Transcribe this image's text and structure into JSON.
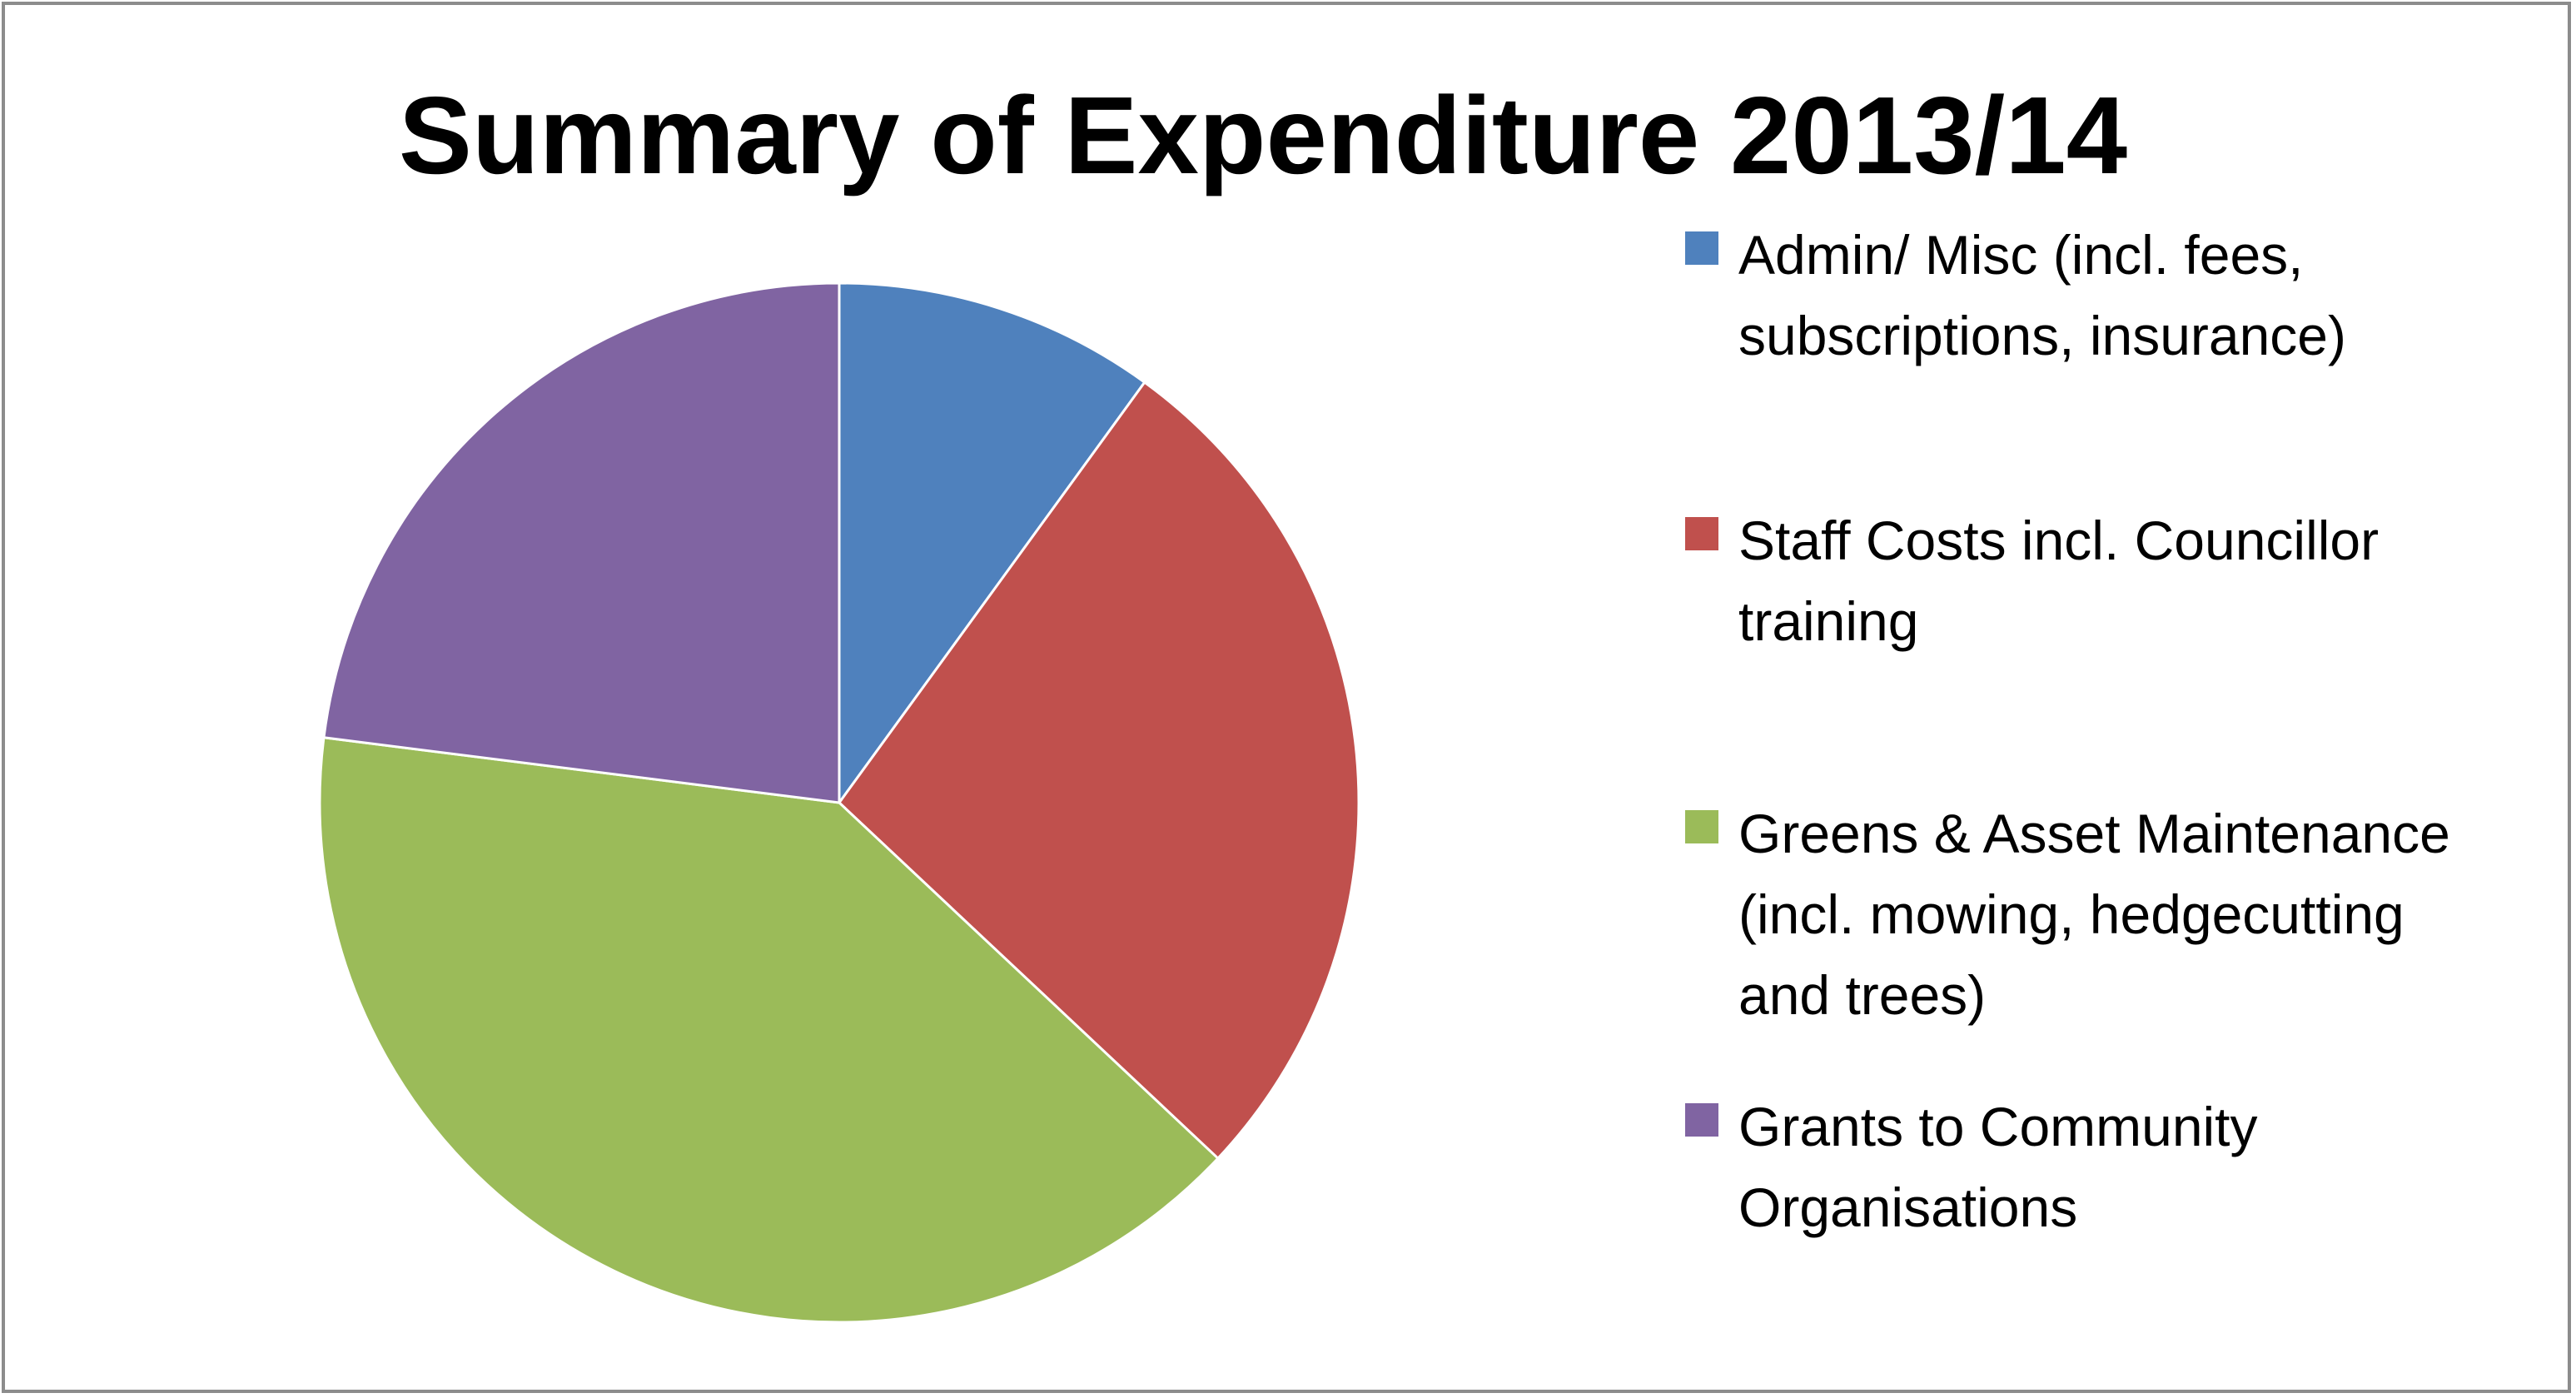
{
  "chart_data": {
    "type": "pie",
    "title": "Summary of Expenditure 2013/14",
    "legend_position": "right",
    "slices": [
      {
        "label": "Admin/ Misc (incl. fees,\nsubscriptions, insurance)",
        "value": 10.0,
        "color": "#4F81BD"
      },
      {
        "label": "Staff Costs incl. Councillor\ntraining",
        "value": 27.0,
        "color": "#C0504D"
      },
      {
        "label": "Greens & Asset Maintenance\n(incl. mowing, hedgecutting\nand trees)",
        "value": 40.0,
        "color": "#9BBB59"
      },
      {
        "label": "Grants to Community\nOrganisations",
        "value": 23.0,
        "color": "#8064A2"
      }
    ]
  }
}
